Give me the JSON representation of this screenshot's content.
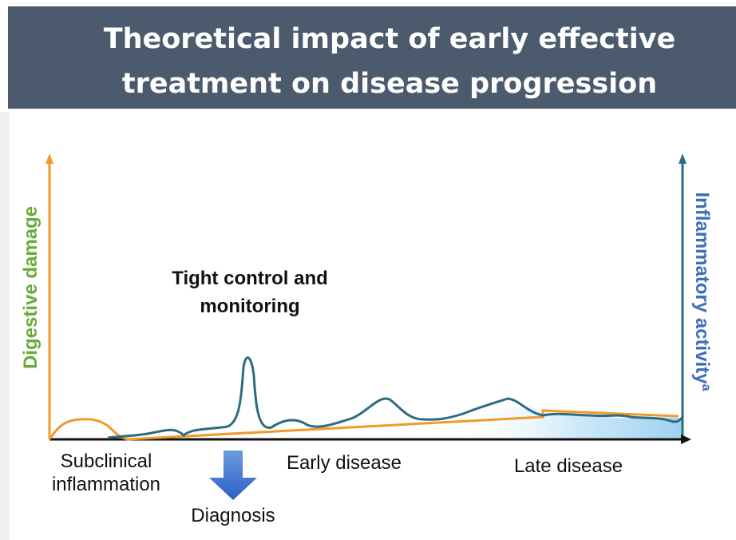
{
  "header": {
    "title": [
      "Theoretical impact of early effective",
      "treatment on disease progression"
    ]
  },
  "axes": {
    "left_label": "Digestive damage",
    "right_label": "Inflammatory activity",
    "right_label_superscript": "a"
  },
  "annotation": [
    "Tight control and",
    "monitoring"
  ],
  "stages": {
    "subclinical": [
      "Subclinical",
      "inflammation"
    ],
    "early": "Early disease",
    "late": "Late disease"
  },
  "event": "Diagnosis"
}
